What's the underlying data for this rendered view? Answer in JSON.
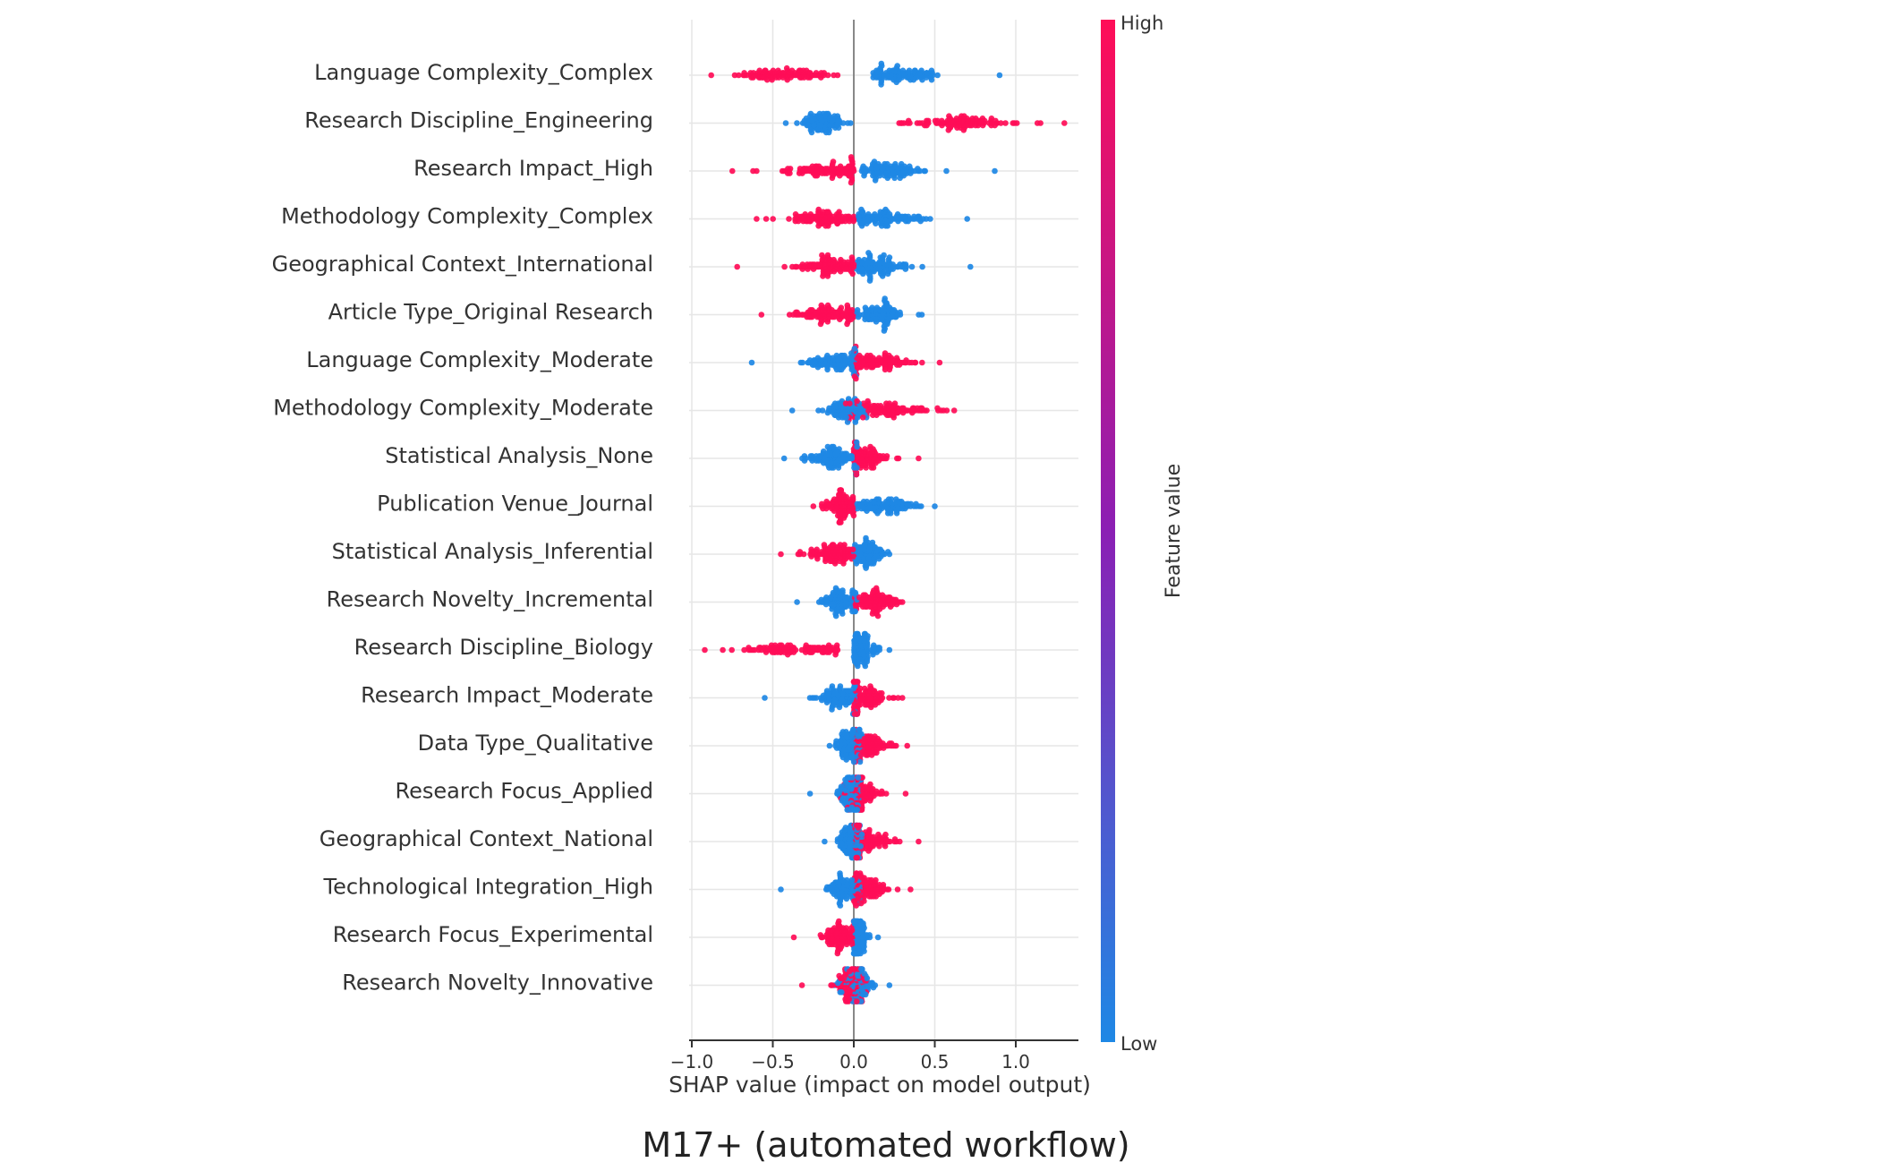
{
  "chart_data": {
    "type": "scatter",
    "subtype": "shap-beeswarm",
    "title": "",
    "subtitle": "",
    "caption": "M17+ (automated workflow)",
    "xlabel": "SHAP value (impact on model output)",
    "ylabel": "",
    "xlim": [
      -1.0,
      1.4
    ],
    "xticks": [
      -1.0,
      -0.5,
      0.0,
      0.5,
      1.0
    ],
    "xtick_labels": [
      "−1.0",
      "−0.5",
      "0.0",
      "0.5",
      "1.0"
    ],
    "grid": true,
    "colorbar": {
      "label": "Feature value",
      "high_label": "High",
      "low_label": "Low",
      "high_color": "#ff0d57",
      "low_color": "#1e88e5"
    },
    "features": [
      {
        "name": "Language Complexity_Complex",
        "high": {
          "center": -0.45,
          "spread": 0.15,
          "min": -0.88,
          "max": -0.1
        },
        "low": {
          "center": 0.3,
          "spread": 0.12,
          "min": 0.12,
          "max": 0.9
        }
      },
      {
        "name": "Research Discipline_Engineering",
        "high": {
          "center": 0.65,
          "spread": 0.18,
          "min": 0.28,
          "max": 1.3
        },
        "low": {
          "center": -0.18,
          "spread": 0.06,
          "min": -0.42,
          "max": -0.02
        }
      },
      {
        "name": "Research Impact_High",
        "high": {
          "center": -0.15,
          "spread": 0.15,
          "min": -0.75,
          "max": 0.0
        },
        "low": {
          "center": 0.22,
          "spread": 0.1,
          "min": 0.05,
          "max": 0.87
        }
      },
      {
        "name": "Methodology Complexity_Complex",
        "high": {
          "center": -0.18,
          "spread": 0.12,
          "min": -0.6,
          "max": 0.0
        },
        "low": {
          "center": 0.2,
          "spread": 0.12,
          "min": 0.02,
          "max": 0.7
        }
      },
      {
        "name": "Geographical Context_International",
        "high": {
          "center": -0.15,
          "spread": 0.12,
          "min": -0.72,
          "max": 0.0
        },
        "low": {
          "center": 0.15,
          "spread": 0.1,
          "min": 0.02,
          "max": 0.72
        }
      },
      {
        "name": "Article Type_Original Research",
        "high": {
          "center": -0.15,
          "spread": 0.1,
          "min": -0.57,
          "max": 0.0
        },
        "low": {
          "center": 0.15,
          "spread": 0.07,
          "min": 0.02,
          "max": 0.42
        }
      },
      {
        "name": "Language Complexity_Moderate",
        "high": {
          "center": 0.15,
          "spread": 0.1,
          "min": 0.0,
          "max": 0.53
        },
        "low": {
          "center": -0.1,
          "spread": 0.1,
          "min": -0.63,
          "max": 0.02
        }
      },
      {
        "name": "Methodology Complexity_Moderate",
        "high": {
          "center": 0.2,
          "spread": 0.15,
          "min": -0.05,
          "max": 0.62
        },
        "low": {
          "center": -0.05,
          "spread": 0.07,
          "min": -0.38,
          "max": 0.08
        }
      },
      {
        "name": "Statistical Analysis_None",
        "high": {
          "center": 0.08,
          "spread": 0.07,
          "min": 0.0,
          "max": 0.4
        },
        "low": {
          "center": -0.12,
          "spread": 0.08,
          "min": -0.43,
          "max": 0.02
        }
      },
      {
        "name": "Publication Venue_Journal",
        "high": {
          "center": -0.08,
          "spread": 0.05,
          "min": -0.25,
          "max": 0.0
        },
        "low": {
          "center": 0.2,
          "spread": 0.1,
          "min": 0.02,
          "max": 0.5
        }
      },
      {
        "name": "Statistical Analysis_Inferential",
        "high": {
          "center": -0.12,
          "spread": 0.08,
          "min": -0.45,
          "max": 0.0
        },
        "low": {
          "center": 0.08,
          "spread": 0.06,
          "min": 0.0,
          "max": 0.22
        }
      },
      {
        "name": "Research Novelty_Incremental",
        "high": {
          "center": 0.12,
          "spread": 0.07,
          "min": 0.0,
          "max": 0.3
        },
        "low": {
          "center": -0.08,
          "spread": 0.06,
          "min": -0.35,
          "max": 0.02
        }
      },
      {
        "name": "Research Discipline_Biology",
        "high": {
          "center": -0.35,
          "spread": 0.2,
          "min": -0.92,
          "max": -0.1
        },
        "low": {
          "center": 0.05,
          "spread": 0.04,
          "min": 0.0,
          "max": 0.22
        }
      },
      {
        "name": "Research Impact_Moderate",
        "high": {
          "center": 0.08,
          "spread": 0.07,
          "min": 0.0,
          "max": 0.3
        },
        "low": {
          "center": -0.08,
          "spread": 0.07,
          "min": -0.55,
          "max": 0.02
        }
      },
      {
        "name": "Data Type_Qualitative",
        "high": {
          "center": 0.1,
          "spread": 0.07,
          "min": 0.0,
          "max": 0.33
        },
        "low": {
          "center": -0.02,
          "spread": 0.04,
          "min": -0.15,
          "max": 0.05
        }
      },
      {
        "name": "Research Focus_Applied",
        "high": {
          "center": 0.05,
          "spread": 0.06,
          "min": -0.08,
          "max": 0.32
        },
        "low": {
          "center": -0.02,
          "spread": 0.04,
          "min": -0.27,
          "max": 0.05
        }
      },
      {
        "name": "Geographical Context_National",
        "high": {
          "center": 0.08,
          "spread": 0.07,
          "min": 0.0,
          "max": 0.4
        },
        "low": {
          "center": -0.02,
          "spread": 0.04,
          "min": -0.18,
          "max": 0.05
        }
      },
      {
        "name": "Technological Integration_High",
        "high": {
          "center": 0.08,
          "spread": 0.06,
          "min": 0.0,
          "max": 0.35
        },
        "low": {
          "center": -0.05,
          "spread": 0.06,
          "min": -0.45,
          "max": 0.05
        }
      },
      {
        "name": "Research Focus_Experimental",
        "high": {
          "center": -0.08,
          "spread": 0.05,
          "min": -0.37,
          "max": 0.0
        },
        "low": {
          "center": 0.03,
          "spread": 0.03,
          "min": 0.0,
          "max": 0.15
        }
      },
      {
        "name": "Research Novelty_Innovative",
        "high": {
          "center": -0.02,
          "spread": 0.05,
          "min": -0.32,
          "max": 0.08
        },
        "low": {
          "center": 0.02,
          "spread": 0.05,
          "min": -0.12,
          "max": 0.22
        }
      }
    ]
  }
}
